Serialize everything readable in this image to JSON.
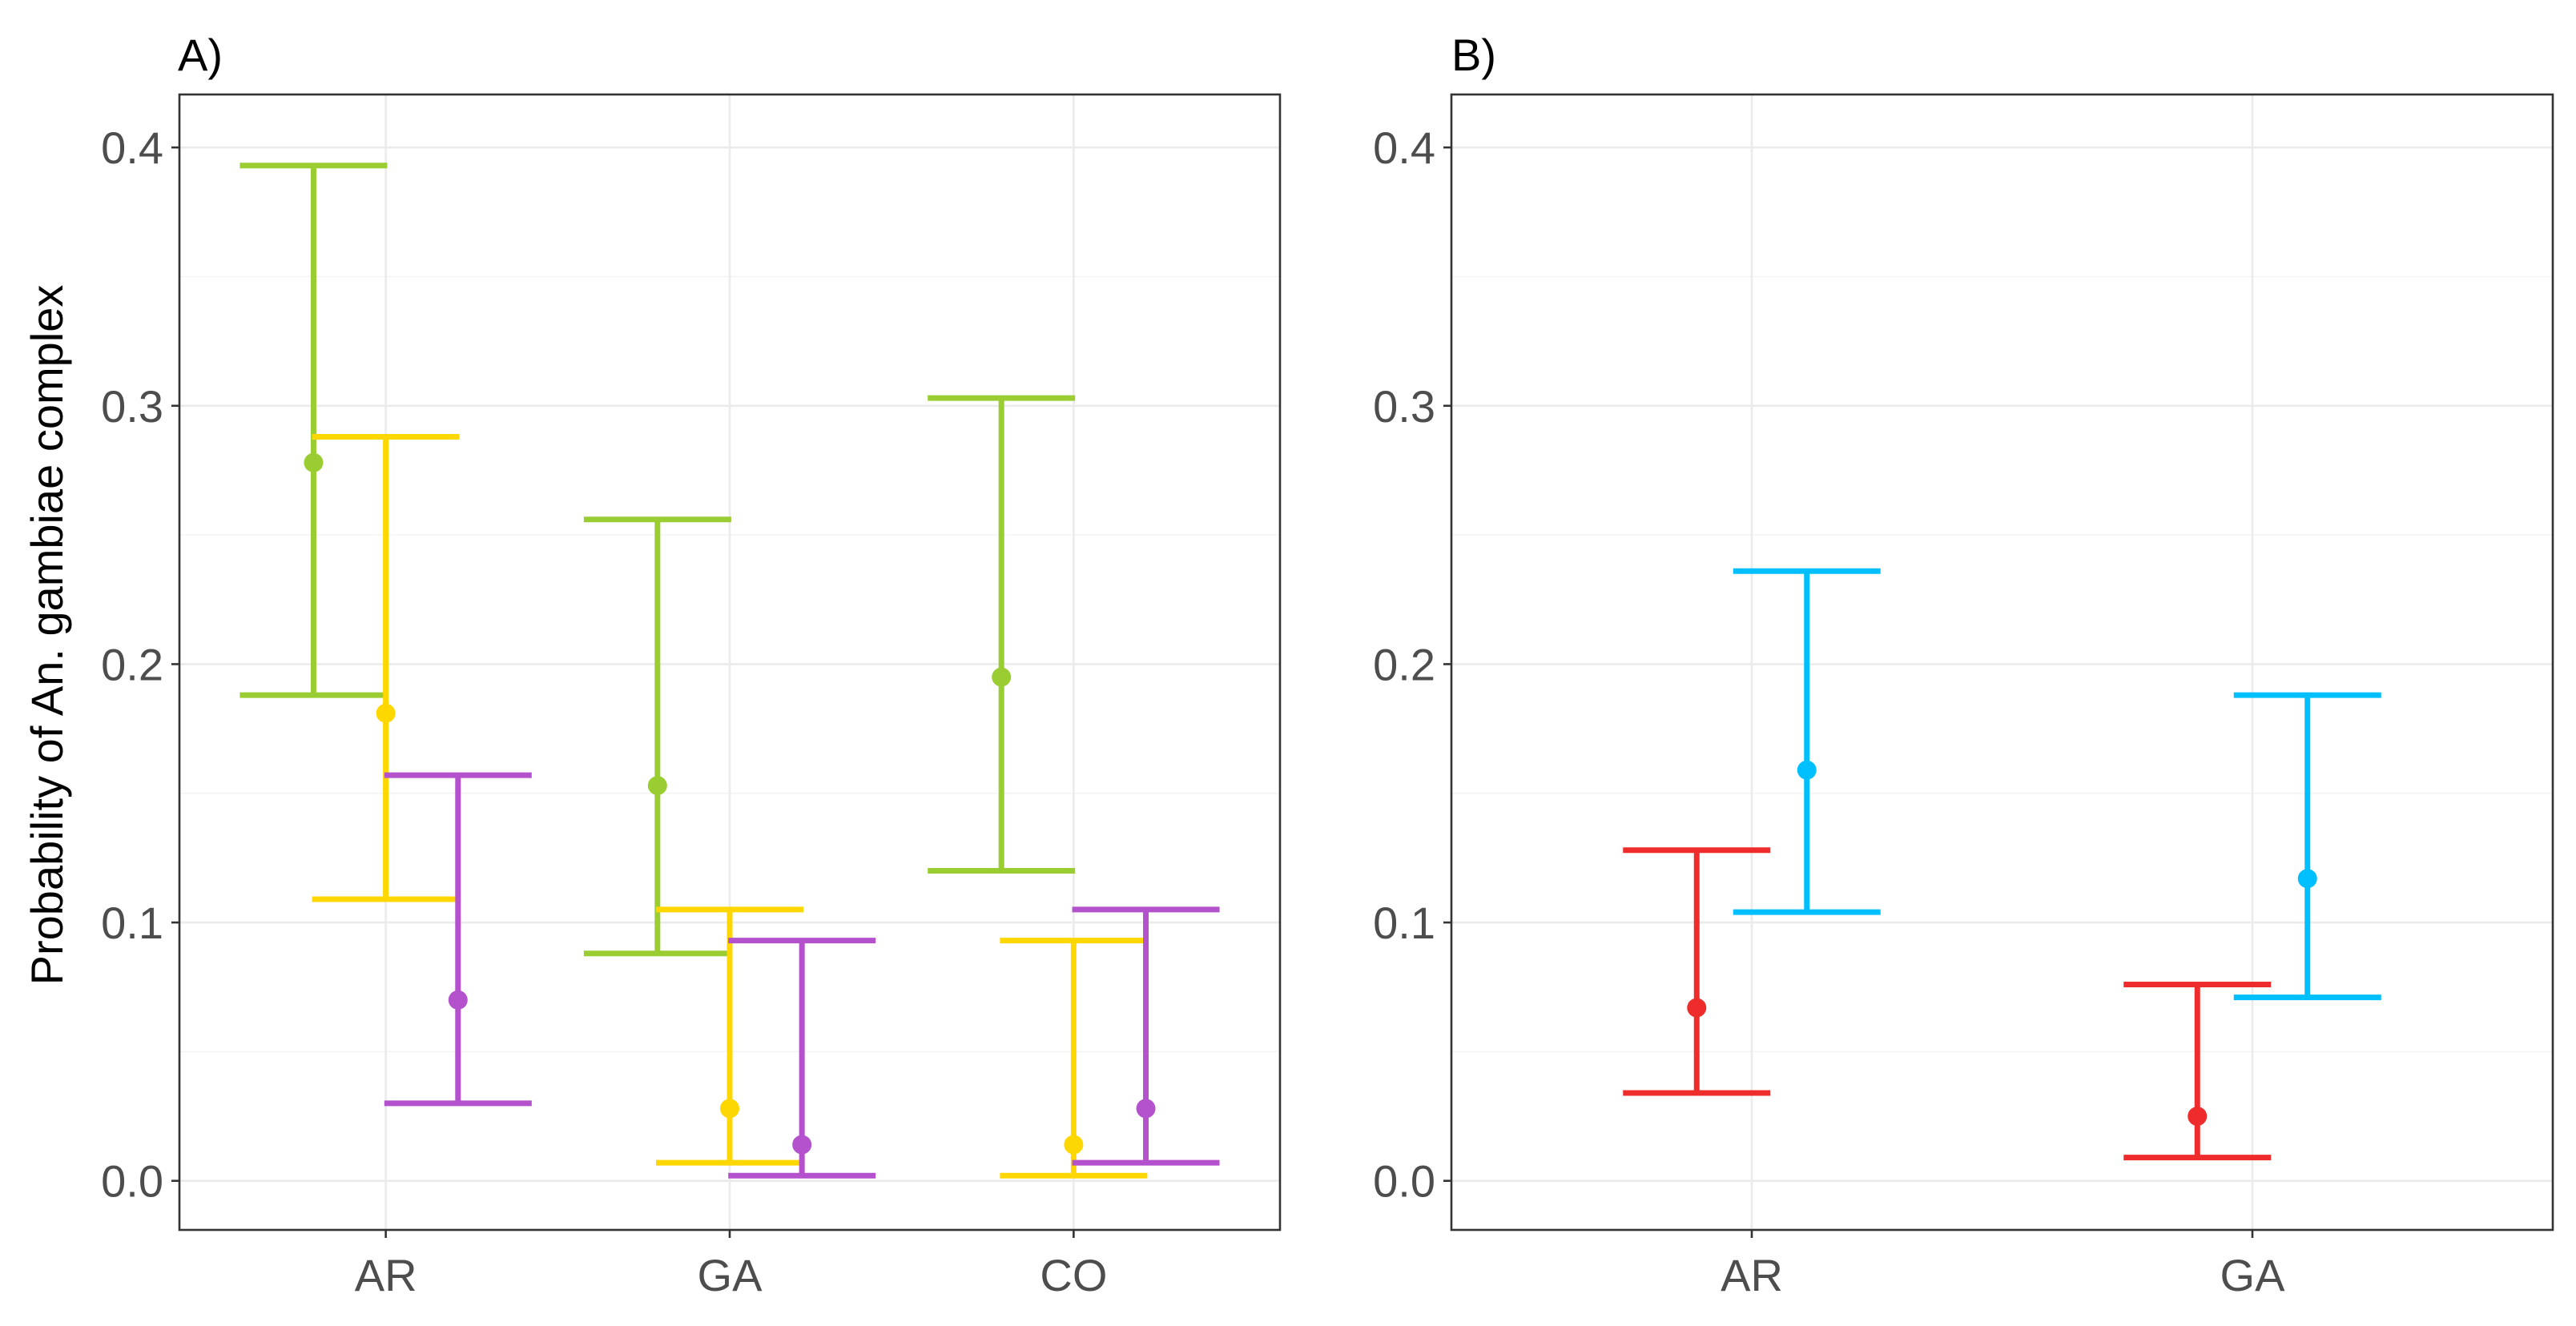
{
  "y_axis_title": "Probability of An. gambiae complex",
  "colors": {
    "green": "#9ACD32",
    "yellow": "#FFD700",
    "purple": "#B452CD",
    "blue": "#00BFFF",
    "red": "#EE2C2C",
    "grid": "#EBEBEB",
    "border": "#333333"
  },
  "chart_data": [
    {
      "type": "errorbar",
      "label": "A)",
      "title": "",
      "xlabel": "",
      "ylabel": "Probability of An. gambiae complex",
      "categories": [
        "AR",
        "GA",
        "CO"
      ],
      "ylim": [
        -0.019,
        0.4205
      ],
      "yticks": [
        0.0,
        0.1,
        0.2,
        0.3,
        0.4
      ],
      "ytick_labels": [
        "0.0",
        "0.1",
        "0.2",
        "0.3",
        "0.4"
      ],
      "series": [
        {
          "name": "series 1",
          "color": "#9ACD32",
          "dodge": -0.21,
          "points": [
            {
              "mean": 0.278,
              "lower": 0.188,
              "upper": 0.393
            },
            {
              "mean": 0.153,
              "lower": 0.088,
              "upper": 0.256
            },
            {
              "mean": 0.195,
              "lower": 0.12,
              "upper": 0.303
            }
          ]
        },
        {
          "name": "series 2",
          "color": "#FFD700",
          "dodge": 0.0,
          "points": [
            {
              "mean": 0.181,
              "lower": 0.109,
              "upper": 0.288
            },
            {
              "mean": 0.028,
              "lower": 0.007,
              "upper": 0.105
            },
            {
              "mean": 0.014,
              "lower": 0.002,
              "upper": 0.093
            }
          ]
        },
        {
          "name": "series 3",
          "color": "#B452CD",
          "dodge": 0.21,
          "points": [
            {
              "mean": 0.07,
              "lower": 0.03,
              "upper": 0.157
            },
            {
              "mean": 0.014,
              "lower": 0.002,
              "upper": 0.093
            },
            {
              "mean": 0.028,
              "lower": 0.007,
              "upper": 0.105
            }
          ]
        }
      ]
    },
    {
      "type": "errorbar",
      "label": "B)",
      "title": "",
      "xlabel": "",
      "ylabel": "",
      "categories": [
        "AR",
        "GA"
      ],
      "ylim": [
        -0.019,
        0.4205
      ],
      "yticks": [
        0.0,
        0.1,
        0.2,
        0.3,
        0.4
      ],
      "ytick_labels": [
        "0.0",
        "0.1",
        "0.2",
        "0.3",
        "0.4"
      ],
      "series": [
        {
          "name": "series 1",
          "color": "#00BFFF",
          "dodge": 0.11,
          "points": [
            {
              "mean": 0.159,
              "lower": 0.104,
              "upper": 0.236
            },
            {
              "mean": 0.117,
              "lower": 0.071,
              "upper": 0.188
            }
          ]
        },
        {
          "name": "series 2",
          "color": "#EE2C2C",
          "dodge": -0.11,
          "points": [
            {
              "mean": 0.067,
              "lower": 0.034,
              "upper": 0.128
            },
            {
              "mean": 0.025,
              "lower": 0.009,
              "upper": 0.076
            }
          ]
        }
      ]
    }
  ]
}
